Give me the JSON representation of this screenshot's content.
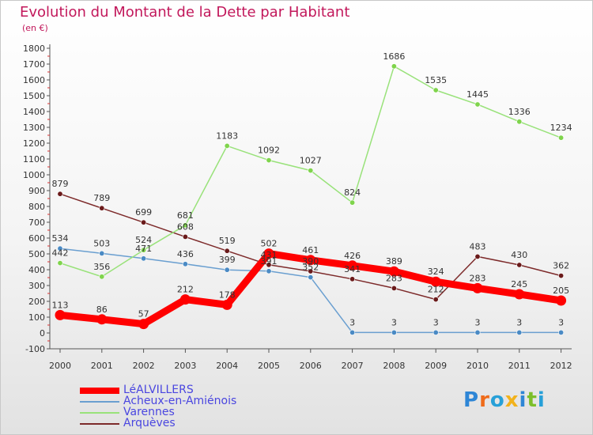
{
  "chart_data": {
    "type": "line",
    "title": "Evolution du Montant de la Dette par Habitant",
    "subtitle": "(en €)",
    "xlabel": "",
    "ylabel": "",
    "categories": [
      "2000",
      "2001",
      "2002",
      "2003",
      "2004",
      "2005",
      "2006",
      "2007",
      "2008",
      "2009",
      "2010",
      "2011",
      "2012"
    ],
    "yticks": [
      "-100",
      "0",
      "100",
      "200",
      "300",
      "400",
      "500",
      "600",
      "700",
      "800",
      "900",
      "1000",
      "1100",
      "1200",
      "1300",
      "1400",
      "1500",
      "1600",
      "1700",
      "1800"
    ],
    "ylim": [
      -100,
      1800
    ],
    "grid": false,
    "legend_position": "bottom-left",
    "series": [
      {
        "name": "LéALVILLERS",
        "color": "#ff0000",
        "values": [
          113,
          86,
          57,
          212,
          178,
          502,
          461,
          426,
          389,
          324,
          283,
          245,
          205
        ]
      },
      {
        "name": "Acheux-en-Amiénois",
        "color": "#6a9fd0",
        "values": [
          534,
          503,
          471,
          436,
          399,
          391,
          352,
          3,
          3,
          3,
          3,
          3,
          3
        ]
      },
      {
        "name": "Varennes",
        "color": "#99e27a",
        "values": [
          442,
          356,
          524,
          681,
          1183,
          1092,
          1027,
          824,
          1686,
          1535,
          1445,
          1336,
          1234
        ]
      },
      {
        "name": "Arquèves",
        "color": "#7d2a2a",
        "values": [
          879,
          789,
          699,
          608,
          519,
          431,
          390,
          341,
          283,
          212,
          483,
          430,
          362
        ]
      }
    ]
  },
  "brand": {
    "letters": [
      "P",
      "r",
      "o",
      "x",
      "i",
      "t",
      "i"
    ],
    "colors": [
      "#2e86d6",
      "#ef6b1a",
      "#27a0d8",
      "#f2b21b",
      "#2e86d6",
      "#7cbf2a",
      "#27a0d8"
    ]
  }
}
